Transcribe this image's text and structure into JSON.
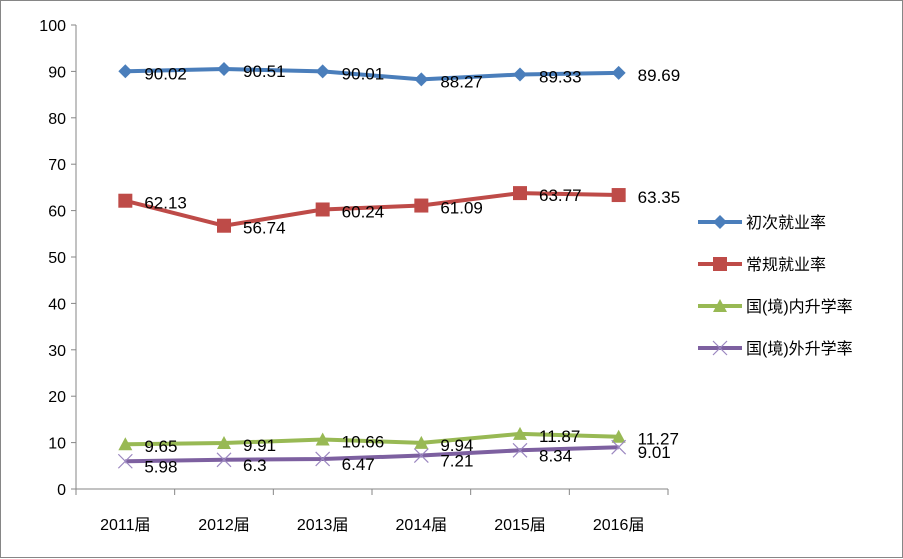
{
  "chart_data": {
    "type": "line",
    "categories": [
      "2011届",
      "2012届",
      "2013届",
      "2014届",
      "2015届",
      "2016届"
    ],
    "ylim": [
      0,
      100
    ],
    "yticks": [
      0,
      10,
      20,
      30,
      40,
      50,
      60,
      70,
      80,
      90,
      100
    ],
    "grid": false,
    "legend_position": "right",
    "series": [
      {
        "name": "初次就业率",
        "values": [
          90.02,
          90.51,
          90.01,
          88.27,
          89.33,
          89.69
        ],
        "color": "#4a7ebb",
        "marker": "diamond"
      },
      {
        "name": "常规就业率",
        "values": [
          62.13,
          56.74,
          60.24,
          61.09,
          63.77,
          63.35
        ],
        "color": "#be4b48",
        "marker": "square"
      },
      {
        "name": "国(境)内升学率",
        "values": [
          9.65,
          9.91,
          10.66,
          9.94,
          11.87,
          11.27
        ],
        "color": "#98b954",
        "marker": "triangle"
      },
      {
        "name": "国(境)外升学率",
        "values": [
          5.98,
          6.3,
          6.47,
          7.21,
          8.34,
          9.01
        ],
        "color": "#7d60a0",
        "marker": "x"
      }
    ]
  }
}
